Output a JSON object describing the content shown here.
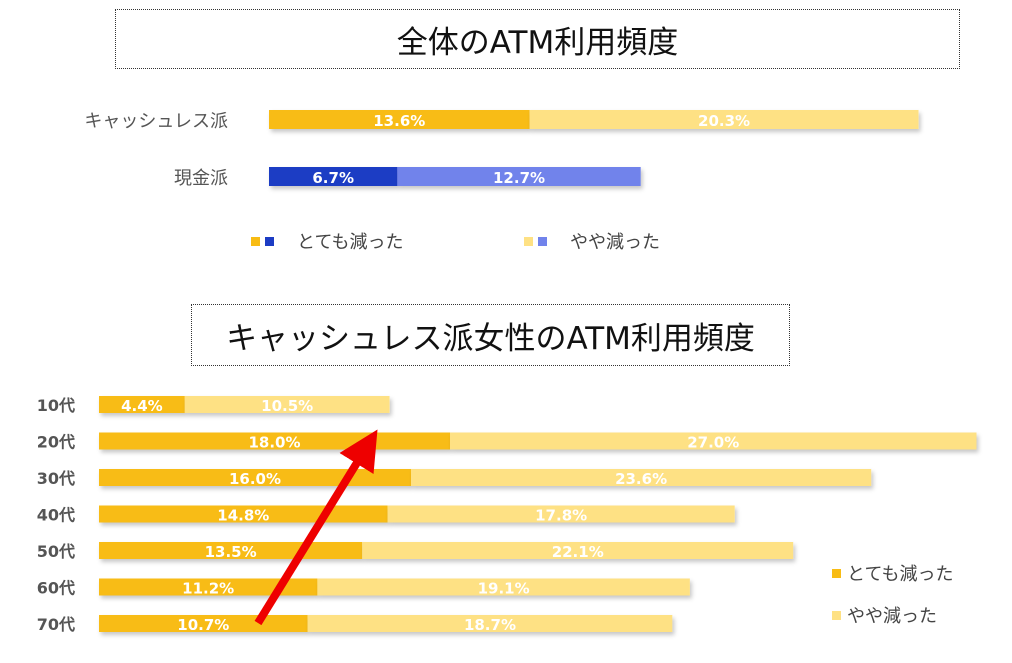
{
  "chart_data": [
    {
      "type": "bar",
      "orientation": "horizontal",
      "stacked": true,
      "title": "全体のATM利用頻度",
      "categories": [
        "キャッシュレス派",
        "現金派"
      ],
      "series": [
        {
          "name": "とても減った",
          "values": [
            13.6,
            6.7
          ],
          "labels": [
            "13.6%",
            "6.7%"
          ]
        },
        {
          "name": "やや減った",
          "values": [
            20.3,
            12.7
          ],
          "labels": [
            "20.3%",
            "12.7%"
          ]
        }
      ],
      "category_colors": [
        {
          "strong": "#F8BC14",
          "light": "#FEE184"
        },
        {
          "strong": "#1C3CC4",
          "light": "#7183EB"
        }
      ],
      "legend": {
        "position": "bottom",
        "items": [
          "とても減った",
          "やや減った"
        ],
        "swatches": [
          [
            "#F8BC14",
            "#1C3CC4"
          ],
          [
            "#FEE184",
            "#7183EB"
          ]
        ]
      },
      "grid": false
    },
    {
      "type": "bar",
      "orientation": "horizontal",
      "stacked": true,
      "title": "キャッシュレス派女性のATM利用頻度",
      "categories": [
        "10代",
        "20代",
        "30代",
        "40代",
        "50代",
        "60代",
        "70代"
      ],
      "series": [
        {
          "name": "とても減った",
          "values": [
            4.4,
            18.0,
            16.0,
            14.8,
            13.5,
            11.2,
            10.7
          ],
          "labels": [
            "4.4%",
            "18.0%",
            "16.0%",
            "14.8%",
            "13.5%",
            "11.2%",
            "10.7%"
          ],
          "color": "#F8BC14"
        },
        {
          "name": "やや減った",
          "values": [
            10.5,
            27.0,
            23.6,
            17.8,
            22.1,
            19.1,
            18.7
          ],
          "labels": [
            "10.5%",
            "27.0%",
            "23.6%",
            "17.8%",
            "22.1%",
            "19.1%",
            "18.7%"
          ],
          "color": "#FEE184"
        }
      ],
      "legend": {
        "position": "bottom-right",
        "items": [
          "とても減った",
          "やや減った"
        ]
      },
      "annotation": {
        "type": "arrow",
        "from_category": "70代",
        "to_category": "20代",
        "color": "#EE0000"
      },
      "grid": false
    }
  ]
}
